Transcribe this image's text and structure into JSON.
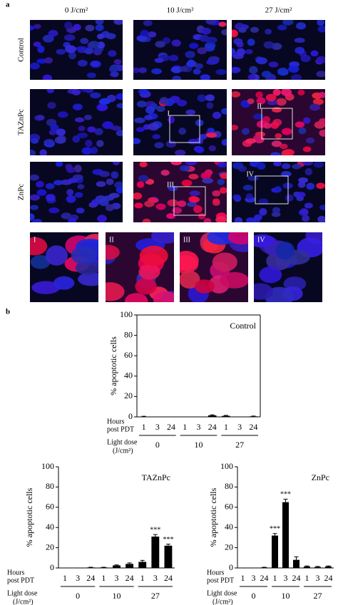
{
  "panel_a": {
    "label": "a",
    "columns": [
      "0 J/cm²",
      "10 J/cm²",
      "27 J/cm²"
    ],
    "rows": [
      "Control",
      "TAZnPc",
      "ZnPc"
    ],
    "regions": [
      "I",
      "II",
      "III",
      "IV"
    ]
  },
  "panel_b": {
    "label": "b"
  },
  "chart_data": [
    {
      "type": "bar",
      "title": "Control",
      "y_label": "% apoptotic cells",
      "categories": [
        "1",
        "3",
        "24",
        "1",
        "3",
        "24",
        "1",
        "3",
        "24"
      ],
      "groups": [
        "0",
        "10",
        "27"
      ],
      "hours_label": [
        "Hours",
        "post PDT"
      ],
      "dose_label": [
        "Light dose",
        "(J/cm²)"
      ],
      "values": [
        0.3,
        0,
        0,
        0,
        0,
        1.5,
        1,
        0,
        0.5
      ],
      "errors": [
        0.3,
        0,
        0,
        0,
        0,
        0.5,
        0.5,
        0,
        0.3
      ],
      "color": "#000000",
      "ylim": [
        0,
        100
      ],
      "yticks": [
        0,
        20,
        40,
        60,
        80,
        100
      ]
    },
    {
      "type": "bar",
      "title": "TAZnPc",
      "y_label": "% apoptotic cells",
      "categories": [
        "1",
        "3",
        "24",
        "1",
        "3",
        "24",
        "1",
        "3",
        "24"
      ],
      "groups": [
        "0",
        "10",
        "27"
      ],
      "hours_label": [
        "Hours",
        "post PDT"
      ],
      "dose_label": [
        "Light dose",
        "(J/cm²)"
      ],
      "values": [
        0,
        0,
        0.5,
        0.5,
        2.5,
        4,
        6,
        31,
        22
      ],
      "errors": [
        0,
        0,
        0.2,
        0.2,
        0.5,
        1,
        1.5,
        2,
        1.5
      ],
      "annotations": [
        {
          "category_index": 7,
          "text": "***"
        },
        {
          "category_index": 8,
          "text": "***"
        }
      ],
      "color": "#000000",
      "ylim": [
        0,
        100
      ],
      "yticks": [
        0,
        20,
        40,
        60,
        80,
        100
      ]
    },
    {
      "type": "bar",
      "title": "ZnPc",
      "y_label": "% apoptotic cells",
      "categories": [
        "1",
        "3",
        "24",
        "1",
        "3",
        "24",
        "1",
        "3",
        "24"
      ],
      "groups": [
        "0",
        "10",
        "27"
      ],
      "hours_label": [
        "Hours",
        "post PDT"
      ],
      "dose_label": [
        "Light dose",
        "(J/cm²)"
      ],
      "values": [
        0,
        0,
        0.5,
        32,
        65,
        8,
        1.5,
        1,
        1.5
      ],
      "errors": [
        0,
        0,
        0.2,
        2,
        3,
        3,
        0.5,
        0.5,
        0.5
      ],
      "annotations": [
        {
          "category_index": 3,
          "text": "***"
        },
        {
          "category_index": 4,
          "text": "***"
        }
      ],
      "color": "#000000",
      "ylim": [
        0,
        100
      ],
      "yticks": [
        0,
        20,
        40,
        60,
        80,
        100
      ]
    }
  ]
}
